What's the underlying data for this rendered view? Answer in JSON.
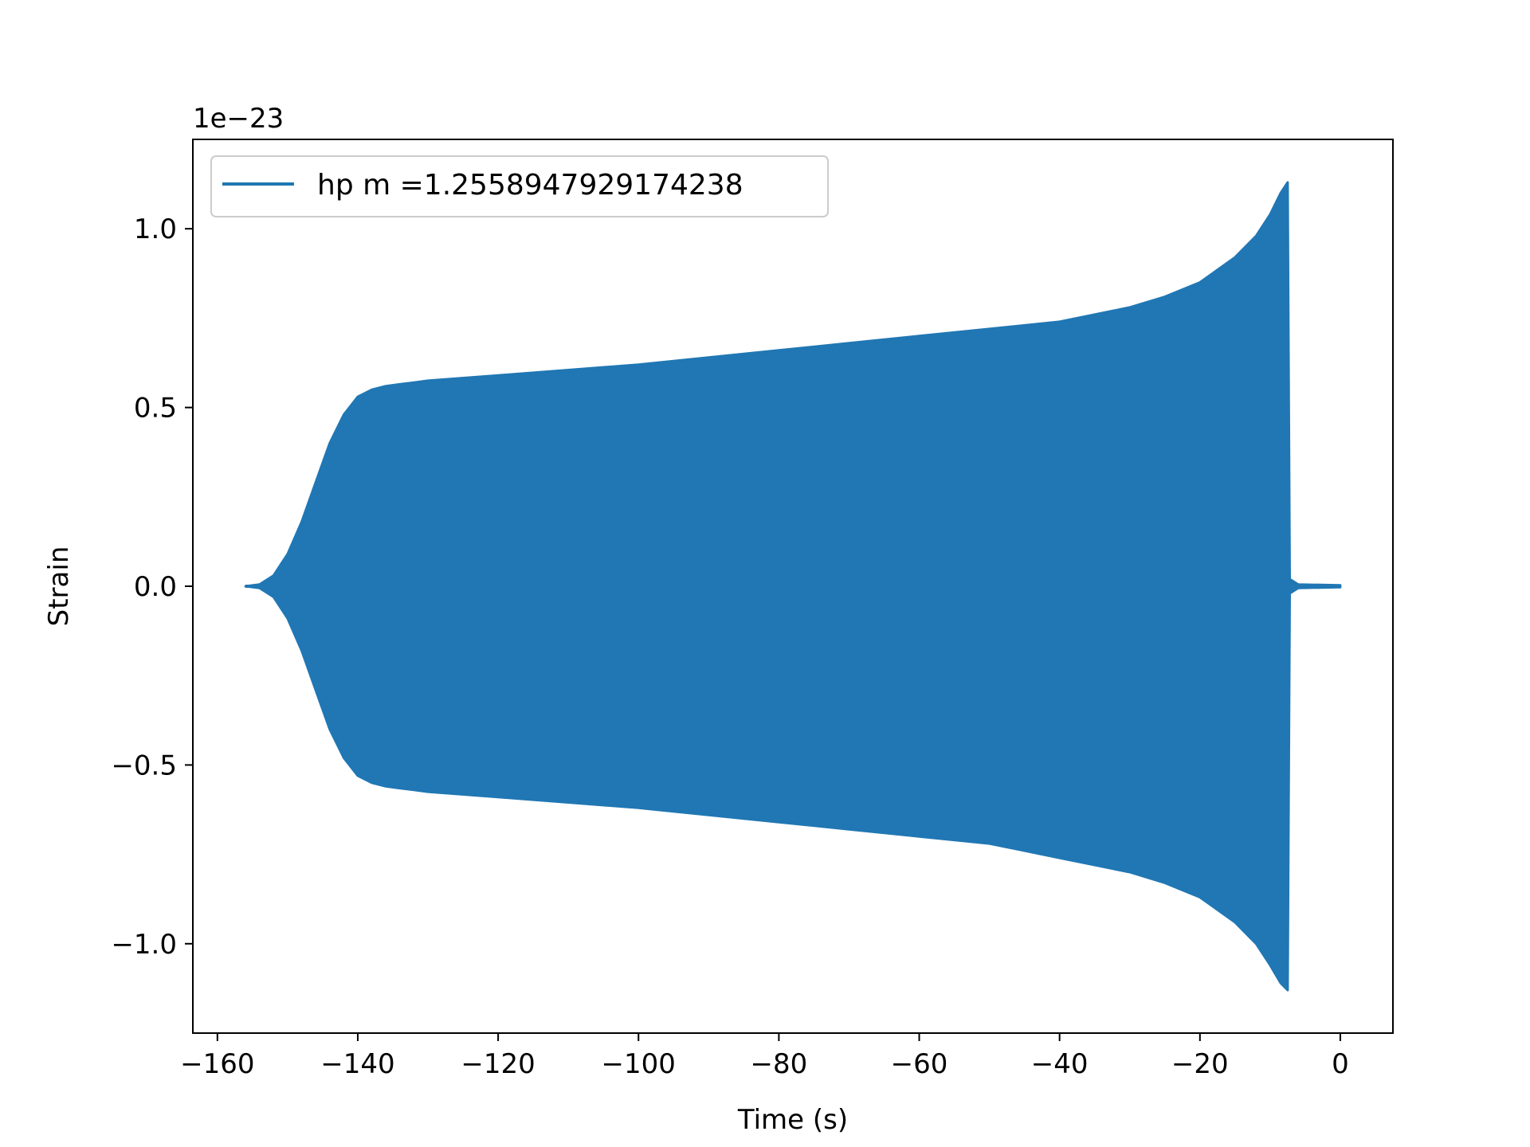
{
  "chart_data": {
    "type": "line",
    "xlabel": "Time (s)",
    "ylabel": "Strain",
    "y_offset_label": "1e−23",
    "xlim": [
      -163.5,
      7.5
    ],
    "ylim": [
      -1.25,
      1.25
    ],
    "x_ticks": [
      -160,
      -140,
      -120,
      -100,
      -80,
      -60,
      -40,
      -20,
      0
    ],
    "x_tick_labels": [
      "−160",
      "−140",
      "−120",
      "−100",
      "−80",
      "−60",
      "−40",
      "−20",
      "0"
    ],
    "y_ticks": [
      -1.0,
      -0.5,
      0.0,
      0.5,
      1.0
    ],
    "y_tick_labels": [
      "−1.0",
      "−0.5",
      "0.0",
      "0.5",
      "1.0"
    ],
    "grid": false,
    "legend_position": "top-left",
    "series": [
      {
        "name": "hp m =1.2558947929174238",
        "color": "#2077b4",
        "description_of_values": "oscillating strain signal (units of 1e-23); values are the upper and lower envelope of the oscillation",
        "envelope_x": [
          -156,
          -154,
          -152,
          -150,
          -148,
          -146,
          -144,
          -142,
          -140,
          -138,
          -136,
          -134,
          -132,
          -130,
          -120,
          -110,
          -100,
          -90,
          -80,
          -70,
          -60,
          -50,
          -40,
          -30,
          -25,
          -20,
          -15,
          -12,
          -10,
          -8.5,
          -7.5,
          -7.2,
          -6,
          0
        ],
        "upper": [
          0.0,
          0.005,
          0.03,
          0.09,
          0.18,
          0.29,
          0.4,
          0.48,
          0.53,
          0.55,
          0.56,
          0.565,
          0.57,
          0.575,
          0.59,
          0.605,
          0.62,
          0.64,
          0.66,
          0.68,
          0.7,
          0.72,
          0.74,
          0.78,
          0.81,
          0.85,
          0.92,
          0.98,
          1.04,
          1.1,
          1.13,
          0.02,
          0.005,
          0.003
        ],
        "lower": [
          0.0,
          -0.005,
          -0.03,
          -0.09,
          -0.18,
          -0.29,
          -0.4,
          -0.48,
          -0.53,
          -0.55,
          -0.56,
          -0.565,
          -0.57,
          -0.575,
          -0.59,
          -0.605,
          -0.62,
          -0.64,
          -0.66,
          -0.68,
          -0.7,
          -0.72,
          -0.76,
          -0.8,
          -0.83,
          -0.87,
          -0.94,
          -1.0,
          -1.06,
          -1.11,
          -1.13,
          -0.02,
          -0.005,
          -0.003
        ]
      }
    ]
  }
}
